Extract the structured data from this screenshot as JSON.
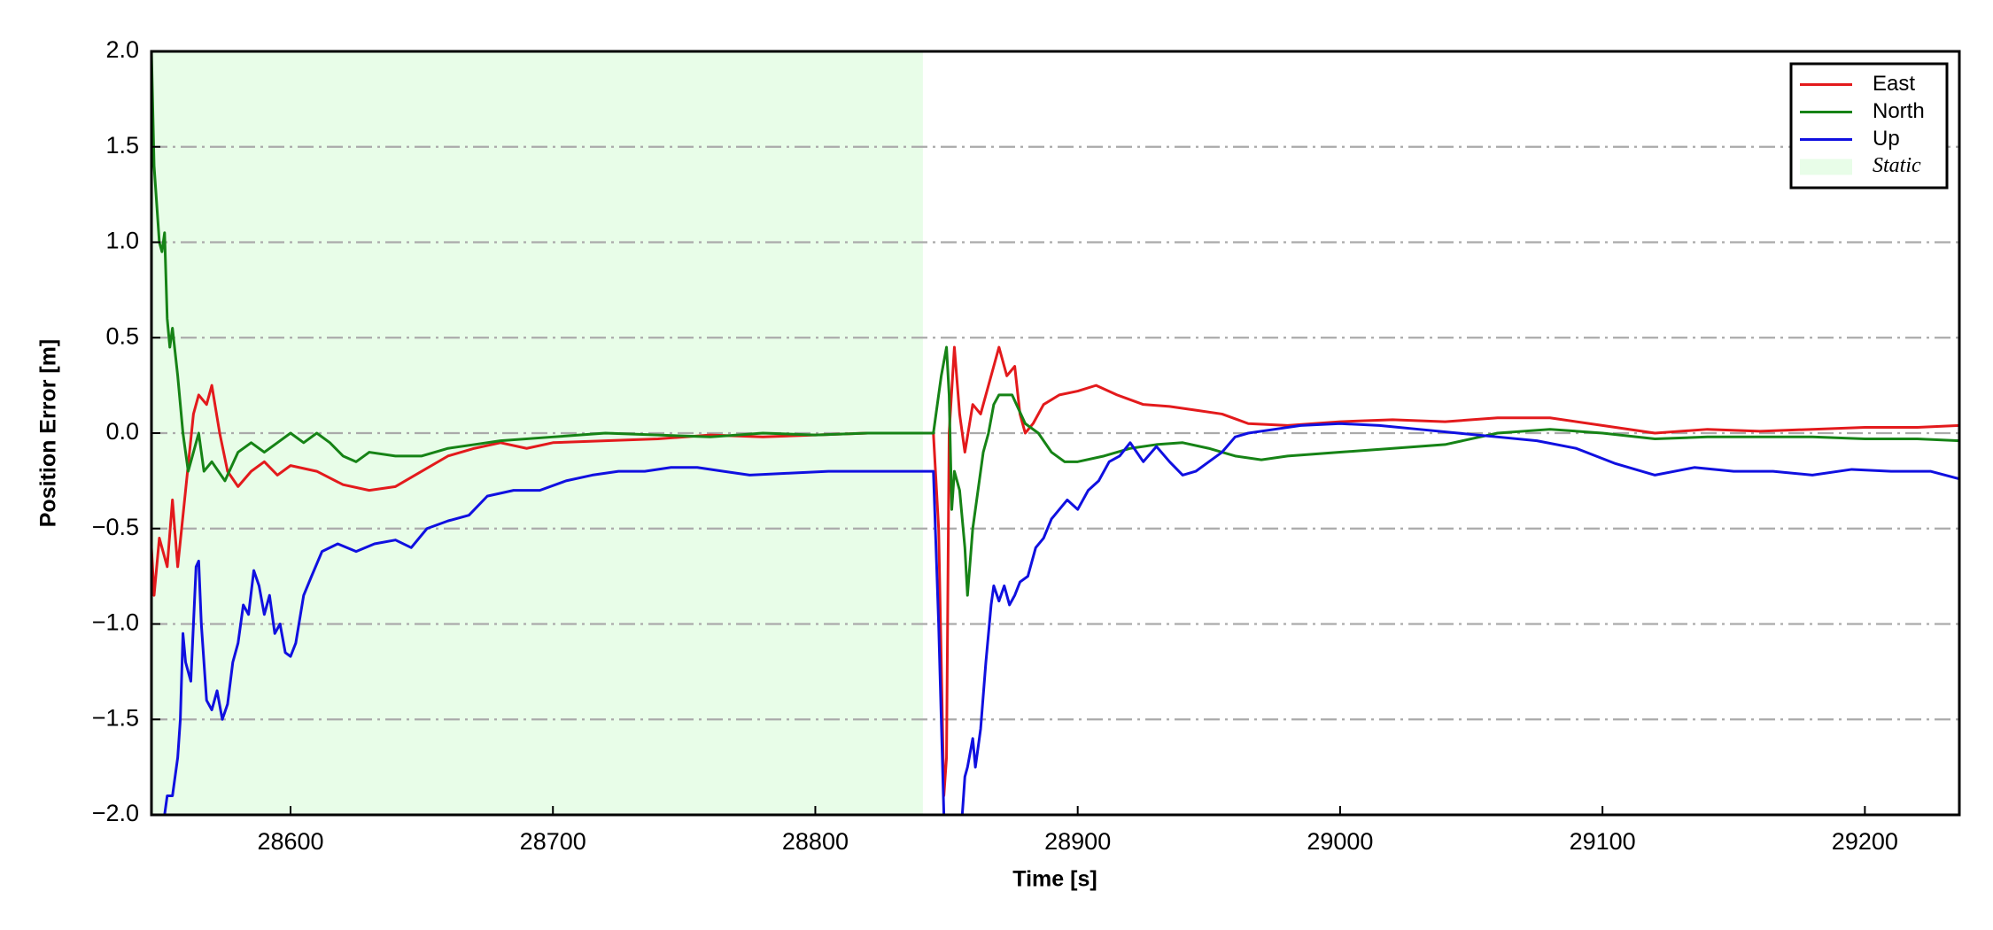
{
  "chart_data": {
    "type": "line",
    "xlabel": "Time [s]",
    "ylabel": "Position Error [m]",
    "xlim": [
      28547,
      29236
    ],
    "ylim": [
      -2.0,
      2.0
    ],
    "xticks": [
      28600,
      28700,
      28800,
      28900,
      29000,
      29100,
      29200
    ],
    "yticks": [
      {
        "value": -2.0,
        "label": "−2.0"
      },
      {
        "value": -1.5,
        "label": "−1.5"
      },
      {
        "value": -1.0,
        "label": "−1.0"
      },
      {
        "value": -0.5,
        "label": "−0.5"
      },
      {
        "value": 0.0,
        "label": "0.0"
      },
      {
        "value": 0.5,
        "label": "0.5"
      },
      {
        "value": 1.0,
        "label": "1.0"
      },
      {
        "value": 1.5,
        "label": "1.5"
      },
      {
        "value": 2.0,
        "label": "2.0"
      }
    ],
    "grid": true,
    "legend": "upper right",
    "shaded_region": {
      "name": "Static",
      "color": "#e8fde8",
      "x": [
        28547,
        28841
      ]
    },
    "series": [
      {
        "name": "East",
        "color": "#e31a1c",
        "x": [
          28547,
          28548,
          28550,
          28553,
          28555,
          28557,
          28560,
          28563,
          28565,
          28568,
          28570,
          28573,
          28576,
          28580,
          28585,
          28590,
          28595,
          28600,
          28610,
          28620,
          28630,
          28640,
          28650,
          28660,
          28670,
          28680,
          28690,
          28700,
          28720,
          28740,
          28760,
          28780,
          28800,
          28820,
          28840,
          28845,
          28847,
          28849,
          28850,
          28851,
          28853,
          28855,
          28857,
          28860,
          28863,
          28866,
          28870,
          28873,
          28876,
          28878,
          28880,
          28883,
          28887,
          28893,
          28900,
          28907,
          28915,
          28925,
          28935,
          28945,
          28955,
          28965,
          28980,
          29000,
          29020,
          29040,
          29060,
          29080,
          29100,
          29120,
          29140,
          29160,
          29180,
          29200,
          29220,
          29236
        ],
        "values": [
          -0.6,
          -0.85,
          -0.55,
          -0.7,
          -0.35,
          -0.7,
          -0.3,
          0.1,
          0.2,
          0.15,
          0.25,
          0.0,
          -0.2,
          -0.28,
          -0.2,
          -0.15,
          -0.22,
          -0.17,
          -0.2,
          -0.27,
          -0.3,
          -0.28,
          -0.2,
          -0.12,
          -0.08,
          -0.05,
          -0.08,
          -0.05,
          -0.04,
          -0.03,
          -0.01,
          -0.02,
          -0.01,
          0.0,
          0.0,
          0.0,
          -0.5,
          -1.9,
          -1.7,
          0.0,
          0.45,
          0.1,
          -0.1,
          0.15,
          0.1,
          0.25,
          0.45,
          0.3,
          0.35,
          0.1,
          0.0,
          0.05,
          0.15,
          0.2,
          0.22,
          0.25,
          0.2,
          0.15,
          0.14,
          0.12,
          0.1,
          0.05,
          0.04,
          0.06,
          0.07,
          0.06,
          0.08,
          0.08,
          0.04,
          0.0,
          0.02,
          0.01,
          0.02,
          0.03,
          0.03,
          0.04
        ]
      },
      {
        "name": "North",
        "color": "#168316",
        "x": [
          28547,
          28548,
          28550,
          28551,
          28552,
          28553,
          28554,
          28555,
          28557,
          28559,
          28561,
          28563,
          28565,
          28567,
          28570,
          28575,
          28580,
          28585,
          28590,
          28595,
          28600,
          28605,
          28610,
          28615,
          28620,
          28625,
          28630,
          28640,
          28650,
          28660,
          28670,
          28680,
          28700,
          28720,
          28740,
          28760,
          28780,
          28800,
          28820,
          28840,
          28845,
          28848,
          28850,
          28851,
          28852,
          28853,
          28855,
          28857,
          28858,
          28860,
          28862,
          28864,
          28866,
          28868,
          28870,
          28875,
          28880,
          28885,
          28890,
          28895,
          28900,
          28910,
          28920,
          28930,
          28940,
          28950,
          28960,
          28970,
          28980,
          29000,
          29020,
          29040,
          29060,
          29080,
          29100,
          29120,
          29140,
          29160,
          29180,
          29200,
          29220,
          29236
        ],
        "values": [
          2.0,
          1.4,
          1.0,
          0.95,
          1.05,
          0.6,
          0.45,
          0.55,
          0.3,
          0.0,
          -0.2,
          -0.1,
          0.0,
          -0.2,
          -0.15,
          -0.25,
          -0.1,
          -0.05,
          -0.1,
          -0.05,
          0.0,
          -0.05,
          0.0,
          -0.05,
          -0.12,
          -0.15,
          -0.1,
          -0.12,
          -0.12,
          -0.08,
          -0.06,
          -0.04,
          -0.02,
          0.0,
          -0.01,
          -0.02,
          0.0,
          -0.01,
          0.0,
          0.0,
          0.0,
          0.3,
          0.45,
          0.2,
          -0.4,
          -0.2,
          -0.3,
          -0.6,
          -0.85,
          -0.5,
          -0.3,
          -0.1,
          0.0,
          0.15,
          0.2,
          0.2,
          0.05,
          0.0,
          -0.1,
          -0.15,
          -0.15,
          -0.12,
          -0.08,
          -0.06,
          -0.05,
          -0.08,
          -0.12,
          -0.14,
          -0.12,
          -0.1,
          -0.08,
          -0.06,
          0.0,
          0.02,
          0.0,
          -0.03,
          -0.02,
          -0.02,
          -0.02,
          -0.03,
          -0.03,
          -0.04
        ]
      },
      {
        "name": "Up",
        "color": "#1010e0",
        "x": [
          28552,
          28553,
          28555,
          28557,
          28558,
          28559,
          28560,
          28561,
          28562,
          28563,
          28564,
          28565,
          28566,
          28567,
          28568,
          28570,
          28572,
          28574,
          28576,
          28578,
          28580,
          28582,
          28584,
          28586,
          28588,
          28590,
          28592,
          28594,
          28596,
          28598,
          28600,
          28602,
          28605,
          28608,
          28612,
          28618,
          28625,
          28632,
          28640,
          28646,
          28652,
          28660,
          28668,
          28675,
          28685,
          28695,
          28705,
          28715,
          28725,
          28735,
          28745,
          28755,
          28765,
          28775,
          28790,
          28805,
          28820,
          28835,
          28845,
          28847,
          28849,
          28856,
          28857,
          28858,
          28860,
          28861,
          28863,
          28865,
          28867,
          28868,
          28870,
          28872,
          28874,
          28876,
          28878,
          28881,
          28884,
          28887,
          28890,
          28893,
          28896,
          28900,
          28904,
          28908,
          28912,
          28916,
          28920,
          28925,
          28930,
          28935,
          28940,
          28945,
          28950,
          28955,
          28960,
          28965,
          28975,
          28985,
          29000,
          29015,
          29030,
          29045,
          29060,
          29075,
          29090,
          29105,
          29120,
          29135,
          29150,
          29165,
          29180,
          29195,
          29210,
          29225,
          29236
        ],
        "values": [
          -2.0,
          -1.9,
          -1.9,
          -1.7,
          -1.5,
          -1.05,
          -1.2,
          -1.25,
          -1.3,
          -1.0,
          -0.7,
          -0.67,
          -1.0,
          -1.2,
          -1.4,
          -1.45,
          -1.35,
          -1.5,
          -1.42,
          -1.2,
          -1.1,
          -0.9,
          -0.95,
          -0.72,
          -0.8,
          -0.95,
          -0.85,
          -1.05,
          -1.0,
          -1.15,
          -1.17,
          -1.1,
          -0.85,
          -0.75,
          -0.62,
          -0.58,
          -0.62,
          -0.58,
          -0.56,
          -0.6,
          -0.5,
          -0.46,
          -0.43,
          -0.33,
          -0.3,
          -0.3,
          -0.25,
          -0.22,
          -0.2,
          -0.2,
          -0.18,
          -0.18,
          -0.2,
          -0.22,
          -0.21,
          -0.2,
          -0.2,
          -0.2,
          -0.2,
          -1.0,
          -2.0,
          -2.0,
          -1.8,
          -1.75,
          -1.6,
          -1.75,
          -1.55,
          -1.2,
          -0.9,
          -0.8,
          -0.88,
          -0.8,
          -0.9,
          -0.85,
          -0.78,
          -0.75,
          -0.6,
          -0.55,
          -0.45,
          -0.4,
          -0.35,
          -0.4,
          -0.3,
          -0.25,
          -0.15,
          -0.12,
          -0.05,
          -0.15,
          -0.07,
          -0.15,
          -0.22,
          -0.2,
          -0.15,
          -0.1,
          -0.02,
          0.0,
          0.02,
          0.04,
          0.05,
          0.04,
          0.02,
          0.0,
          -0.02,
          -0.04,
          -0.08,
          -0.16,
          -0.22,
          -0.18,
          -0.2,
          -0.2,
          -0.22,
          -0.19,
          -0.2,
          -0.2,
          -0.24
        ]
      }
    ]
  }
}
